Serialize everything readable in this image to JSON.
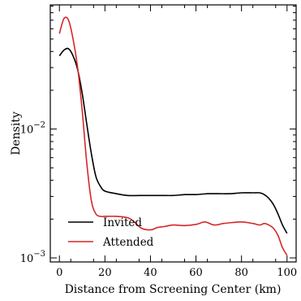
{
  "chart_data": {
    "type": "line",
    "title": "",
    "xlabel": "Distance from Screening Center (km)",
    "ylabel": "Density",
    "xlim": [
      -4,
      104
    ],
    "ylim": [
      0.00093,
      0.092
    ],
    "y_scale": "log",
    "grid": false,
    "legend_position": "bottom-left",
    "x_ticks": [
      {
        "value": 0,
        "label": "0"
      },
      {
        "value": 20,
        "label": "20"
      },
      {
        "value": 40,
        "label": "40"
      },
      {
        "value": 60,
        "label": "60"
      },
      {
        "value": 80,
        "label": "80"
      },
      {
        "value": 100,
        "label": "100"
      }
    ],
    "y_ticks": [
      {
        "value": 0.01,
        "base": "10",
        "exp": "−2"
      },
      {
        "value": 0.001,
        "base": "10",
        "exp": "−3"
      }
    ],
    "series": [
      {
        "name": "Invited",
        "color": "#000000",
        "x": [
          0,
          2,
          4,
          6,
          8,
          10,
          12,
          14,
          16,
          18,
          20,
          25,
          30,
          35,
          40,
          45,
          50,
          55,
          60,
          65,
          70,
          75,
          80,
          85,
          88,
          90,
          92,
          94,
          96,
          98,
          100
        ],
        "y": [
          0.037,
          0.041,
          0.042,
          0.037,
          0.029,
          0.019,
          0.011,
          0.0065,
          0.0043,
          0.0036,
          0.0033,
          0.00315,
          0.00305,
          0.00305,
          0.00305,
          0.00305,
          0.00305,
          0.0031,
          0.0031,
          0.00315,
          0.00315,
          0.00315,
          0.0032,
          0.0032,
          0.0032,
          0.0031,
          0.0029,
          0.0026,
          0.0022,
          0.0018,
          0.00155
        ]
      },
      {
        "name": "Attended",
        "color": "#d62728",
        "x": [
          0,
          2,
          4,
          6,
          8,
          10,
          12,
          14,
          16,
          18,
          20,
          25,
          30,
          33,
          36,
          40,
          43,
          46,
          50,
          55,
          60,
          64,
          68,
          72,
          76,
          80,
          85,
          88,
          90,
          92,
          94,
          96,
          98,
          100
        ],
        "y": [
          0.055,
          0.072,
          0.07,
          0.05,
          0.03,
          0.014,
          0.0055,
          0.0028,
          0.0022,
          0.0021,
          0.0021,
          0.0021,
          0.00205,
          0.0019,
          0.0017,
          0.00165,
          0.00172,
          0.00175,
          0.0018,
          0.00178,
          0.00182,
          0.0019,
          0.0018,
          0.00185,
          0.00188,
          0.0019,
          0.00185,
          0.0018,
          0.00185,
          0.0018,
          0.0017,
          0.0015,
          0.0012,
          0.00105
        ]
      }
    ]
  }
}
